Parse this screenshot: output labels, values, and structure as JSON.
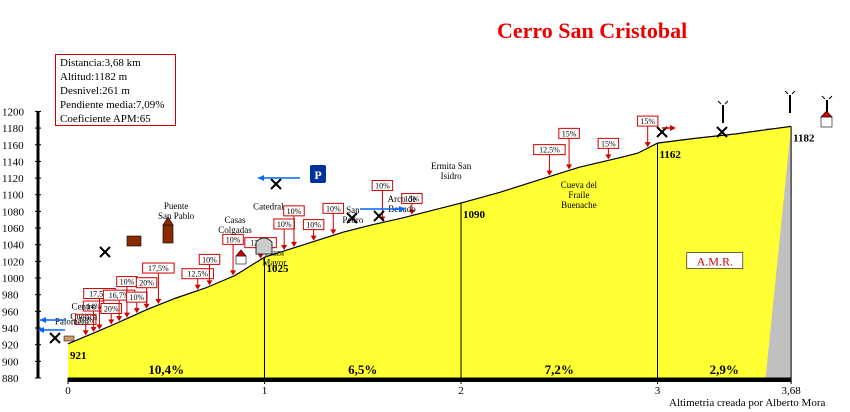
{
  "chart_data": {
    "type": "area",
    "title": "Cerro San Cristobal",
    "info_box": {
      "distance": "Distancia:3,68 km",
      "altitude": "Altitud:1182 m",
      "gain": "Desnivel:261 m",
      "avg_grade": "Pendiente media:7,09%",
      "apm": "Coeficiente APM:65"
    },
    "credit": "Altimetria creada por Alberto Mora",
    "watermark": "A.M.R.",
    "ylim": [
      880,
      1200
    ],
    "xlim": [
      0,
      3.68
    ],
    "y_ticks": [
      "880",
      "900",
      "920",
      "940",
      "960",
      "980",
      "1000",
      "1020",
      "1040",
      "1060",
      "1080",
      "1100",
      "1120",
      "1140",
      "1160",
      "1180",
      "1200"
    ],
    "x_ticks": [
      {
        "x": 0,
        "label": "0"
      },
      {
        "x": 1,
        "label": "1"
      },
      {
        "x": 2,
        "label": "2"
      },
      {
        "x": 3,
        "label": "3"
      },
      {
        "x": 3.68,
        "label": "3,68"
      }
    ],
    "profile": [
      {
        "x": 0,
        "y": 921
      },
      {
        "x": 0.15,
        "y": 936
      },
      {
        "x": 0.25,
        "y": 946
      },
      {
        "x": 0.4,
        "y": 962
      },
      {
        "x": 0.55,
        "y": 976
      },
      {
        "x": 0.7,
        "y": 988
      },
      {
        "x": 0.85,
        "y": 1003
      },
      {
        "x": 1,
        "y": 1025
      },
      {
        "x": 1.2,
        "y": 1040
      },
      {
        "x": 1.4,
        "y": 1055
      },
      {
        "x": 1.55,
        "y": 1064
      },
      {
        "x": 1.7,
        "y": 1072
      },
      {
        "x": 1.85,
        "y": 1081
      },
      {
        "x": 2,
        "y": 1090
      },
      {
        "x": 2.2,
        "y": 1103
      },
      {
        "x": 2.4,
        "y": 1118
      },
      {
        "x": 2.6,
        "y": 1133
      },
      {
        "x": 2.8,
        "y": 1144
      },
      {
        "x": 2.9,
        "y": 1150
      },
      {
        "x": 3,
        "y": 1162
      },
      {
        "x": 3.2,
        "y": 1168
      },
      {
        "x": 3.4,
        "y": 1173
      },
      {
        "x": 3.55,
        "y": 1178
      },
      {
        "x": 3.68,
        "y": 1182
      }
    ],
    "segment_grades": [
      {
        "x_from": 0,
        "x_to": 1,
        "label": "10,4%"
      },
      {
        "x_from": 1,
        "x_to": 2,
        "label": "6,5%"
      },
      {
        "x_from": 2,
        "x_to": 3,
        "label": "7,2%"
      },
      {
        "x_from": 3,
        "x_to": 3.68,
        "label": "2,9%"
      }
    ],
    "altitude_labels": [
      {
        "x": 0,
        "y": 921,
        "label": "921"
      },
      {
        "x": 1,
        "y": 1025,
        "label": "1025"
      },
      {
        "x": 2,
        "y": 1090,
        "label": "1090"
      },
      {
        "x": 3,
        "y": 1162,
        "label": "1162"
      },
      {
        "x": 3.68,
        "y": 1182,
        "label": "1182"
      }
    ],
    "grade_flags": [
      {
        "x": 0.09,
        "label": "10%"
      },
      {
        "x": 0.13,
        "label": "14%"
      },
      {
        "x": 0.16,
        "label": "17,5%"
      },
      {
        "x": 0.22,
        "label": "20%"
      },
      {
        "x": 0.26,
        "label": "16,7%"
      },
      {
        "x": 0.3,
        "label": "10%"
      },
      {
        "x": 0.35,
        "label": "10%"
      },
      {
        "x": 0.4,
        "label": "20%"
      },
      {
        "x": 0.46,
        "label": "17,5%"
      },
      {
        "x": 0.66,
        "label": "12,5%"
      },
      {
        "x": 0.72,
        "label": "10%"
      },
      {
        "x": 0.84,
        "label": "10%"
      },
      {
        "x": 0.98,
        "label": "12,5%"
      },
      {
        "x": 1.1,
        "label": "10%"
      },
      {
        "x": 1.15,
        "label": "10%"
      },
      {
        "x": 1.25,
        "label": "10%"
      },
      {
        "x": 1.35,
        "label": "10%"
      },
      {
        "x": 1.6,
        "label": "10%"
      },
      {
        "x": 1.75,
        "label": "15%"
      },
      {
        "x": 2.45,
        "label": "12,5%"
      },
      {
        "x": 2.55,
        "label": "15%"
      },
      {
        "x": 2.75,
        "label": "15%"
      },
      {
        "x": 2.95,
        "label": "15%"
      }
    ],
    "poi_labels": [
      {
        "x": 0.08,
        "y": 962,
        "text": "Centro\nCuenca"
      },
      {
        "x": 0.02,
        "y": 944,
        "text": "Palomera"
      },
      {
        "x": 0.55,
        "y": 1083,
        "text": "Puente\nSan Pablo"
      },
      {
        "x": 0.85,
        "y": 1066,
        "text": "Casas\nColgadas"
      },
      {
        "x": 1.02,
        "y": 1082,
        "text": "Catedral"
      },
      {
        "x": 1.05,
        "y": 1027,
        "text": "Plaza\nMayor"
      },
      {
        "x": 1.45,
        "y": 1078,
        "text": "San\nPedro"
      },
      {
        "x": 1.7,
        "y": 1091,
        "text": "Arco de\nBezudo"
      },
      {
        "x": 1.95,
        "y": 1131,
        "text": "Ermita San\nIsidro"
      },
      {
        "x": 2.6,
        "y": 1108,
        "text": "Cueva del\nFraile"
      },
      {
        "x": 2.6,
        "y": 1084,
        "text": "Buenache"
      }
    ]
  }
}
